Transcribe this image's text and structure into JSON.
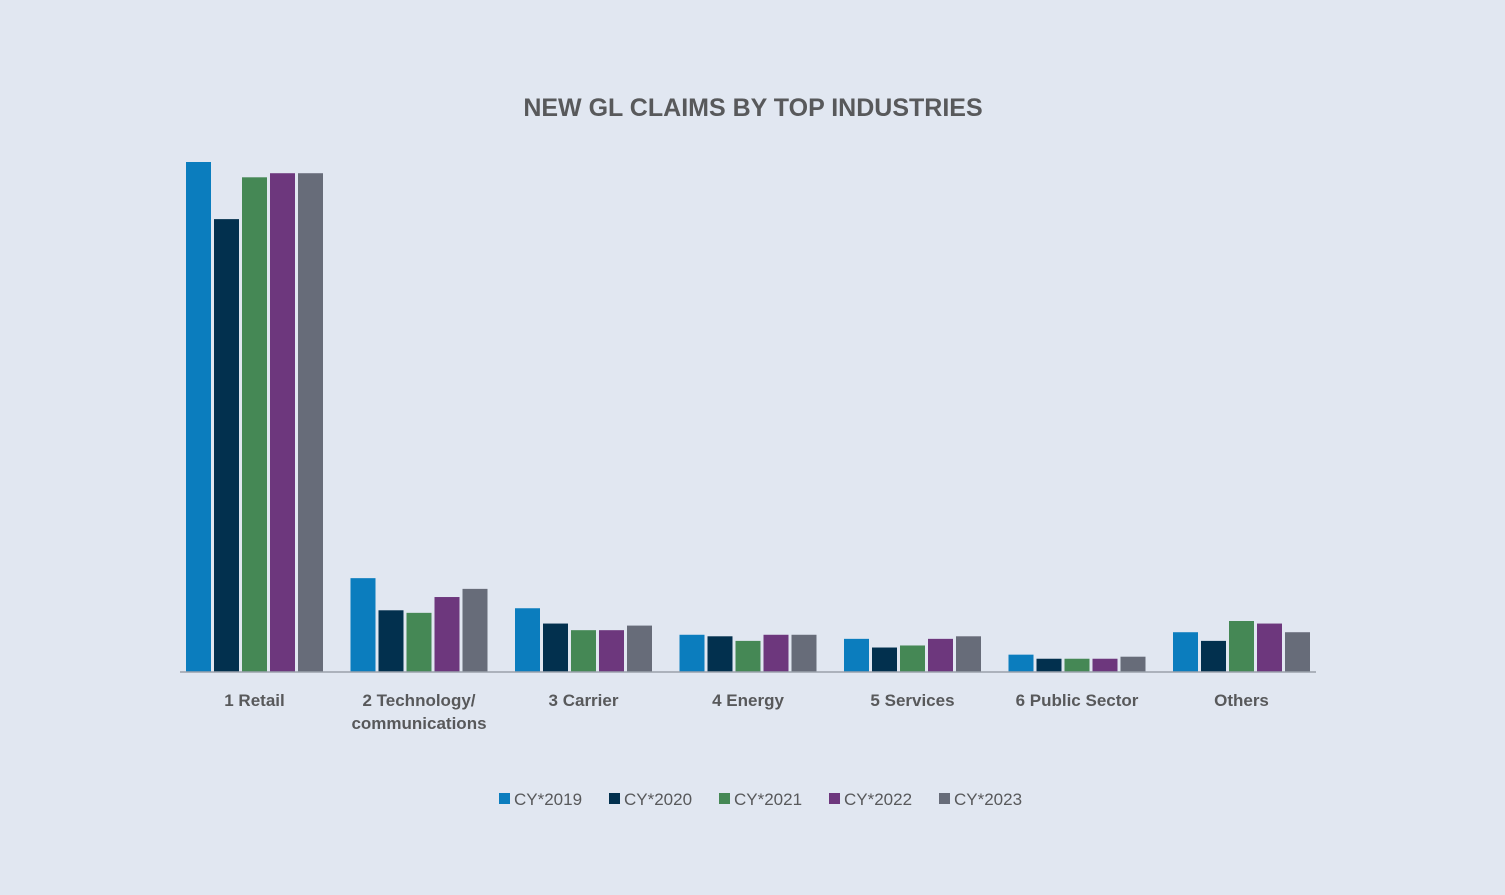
{
  "chart_data": {
    "type": "bar",
    "title": "NEW GL CLAIMS BY TOP INDUSTRIES",
    "categories": [
      [
        "1 Retail"
      ],
      [
        "2 Technology/",
        "communications"
      ],
      [
        "3 Carrier"
      ],
      [
        "4 Energy"
      ],
      [
        "5 Services"
      ],
      [
        "6 Public Sector"
      ],
      [
        "Others"
      ]
    ],
    "series": [
      {
        "name": "CY*2019",
        "color": "#0b7dbe",
        "values": [
          1000,
          184,
          125,
          73,
          65,
          34,
          78
        ]
      },
      {
        "name": "CY*2020",
        "color": "#02304e",
        "values": [
          888,
          121,
          95,
          70,
          48,
          26,
          61
        ]
      },
      {
        "name": "CY*2021",
        "color": "#458855",
        "values": [
          970,
          116,
          82,
          61,
          52,
          26,
          100
        ]
      },
      {
        "name": "CY*2022",
        "color": "#6d377d",
        "values": [
          978,
          147,
          82,
          73,
          65,
          26,
          95
        ]
      },
      {
        "name": "CY*2023",
        "color": "#676c79",
        "values": [
          978,
          163,
          91,
          73,
          70,
          30,
          78
        ]
      }
    ],
    "ylim": [
      0,
      1000
    ],
    "axis_labels_shown": false,
    "gridlines": false,
    "legend_position": "bottom-center"
  }
}
